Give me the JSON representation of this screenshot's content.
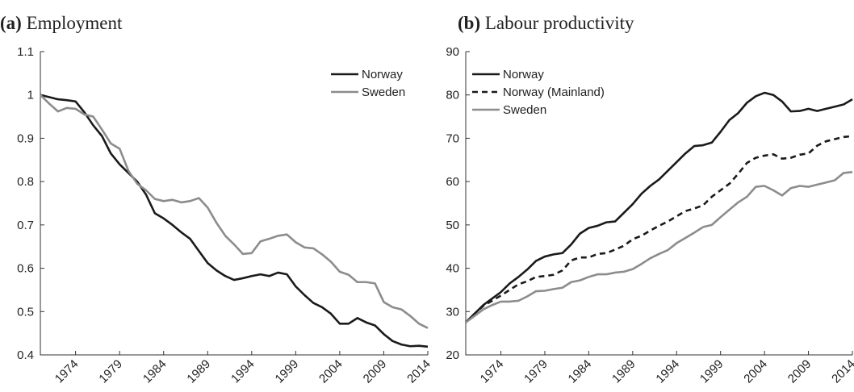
{
  "chart_data": [
    {
      "type": "line",
      "title_letter": "(a)",
      "title": "Employment",
      "x": [
        1970,
        1971,
        1972,
        1973,
        1974,
        1975,
        1976,
        1977,
        1978,
        1979,
        1980,
        1981,
        1982,
        1983,
        1984,
        1985,
        1986,
        1987,
        1988,
        1989,
        1990,
        1991,
        1992,
        1993,
        1994,
        1995,
        1996,
        1997,
        1998,
        1999,
        2000,
        2001,
        2002,
        2003,
        2004,
        2005,
        2006,
        2007,
        2008,
        2009,
        2010,
        2011,
        2012,
        2013,
        2014
      ],
      "series": [
        {
          "name": "Norway",
          "color": "#1a1a1a",
          "dash": false,
          "values": [
            1.0,
            0.995,
            0.99,
            0.988,
            0.985,
            0.96,
            0.93,
            0.905,
            0.865,
            0.84,
            0.82,
            0.8,
            0.77,
            0.727,
            0.715,
            0.7,
            0.683,
            0.668,
            0.64,
            0.612,
            0.595,
            0.582,
            0.573,
            0.577,
            0.582,
            0.586,
            0.582,
            0.59,
            0.586,
            0.558,
            0.538,
            0.52,
            0.51,
            0.495,
            0.472,
            0.472,
            0.485,
            0.475,
            0.468,
            0.448,
            0.432,
            0.424,
            0.42,
            0.421,
            0.419
          ]
        },
        {
          "name": "Sweden",
          "color": "#8c8c8c",
          "dash": false,
          "values": [
            1.0,
            0.98,
            0.962,
            0.97,
            0.968,
            0.955,
            0.95,
            0.92,
            0.888,
            0.876,
            0.825,
            0.795,
            0.78,
            0.76,
            0.755,
            0.758,
            0.752,
            0.755,
            0.762,
            0.74,
            0.705,
            0.675,
            0.655,
            0.633,
            0.635,
            0.662,
            0.668,
            0.675,
            0.678,
            0.66,
            0.648,
            0.646,
            0.632,
            0.615,
            0.592,
            0.585,
            0.568,
            0.568,
            0.565,
            0.522,
            0.51,
            0.505,
            0.49,
            0.472,
            0.462
          ]
        }
      ],
      "xlim": [
        1970,
        2014
      ],
      "xticks": [
        1974,
        1979,
        1984,
        1989,
        1994,
        1999,
        2004,
        2009,
        2014
      ],
      "ylim": [
        0.4,
        1.1
      ],
      "yticks": [
        {
          "value": 0.4,
          "label": "0.4"
        },
        {
          "value": 0.5,
          "label": "0.5"
        },
        {
          "value": 0.6,
          "label": "0.6"
        },
        {
          "value": 0.7,
          "label": "0.7"
        },
        {
          "value": 0.8,
          "label": "0.8"
        },
        {
          "value": 0.9,
          "label": "0.9"
        },
        1,
        {
          "value": 1.1,
          "label": "1.1"
        }
      ],
      "legend": "upper right",
      "grid": false
    },
    {
      "type": "line",
      "title_letter": "(b)",
      "title": "Labour productivity",
      "x": [
        1970,
        1971,
        1972,
        1973,
        1974,
        1975,
        1976,
        1977,
        1978,
        1979,
        1980,
        1981,
        1982,
        1983,
        1984,
        1985,
        1986,
        1987,
        1988,
        1989,
        1990,
        1991,
        1992,
        1993,
        1994,
        1995,
        1996,
        1997,
        1998,
        1999,
        2000,
        2001,
        2002,
        2003,
        2004,
        2005,
        2006,
        2007,
        2008,
        2009,
        2010,
        2011,
        2012,
        2013,
        2014
      ],
      "series": [
        {
          "name": "Norway",
          "color": "#1a1a1a",
          "dash": false,
          "values": [
            27.5,
            29.5,
            31.5,
            33,
            34.5,
            36.5,
            38,
            39.7,
            41.7,
            42.7,
            43.2,
            43.5,
            45.5,
            48,
            49.3,
            49.8,
            50.6,
            50.8,
            52.8,
            54.8,
            57.2,
            59,
            60.5,
            62.5,
            64.5,
            66.5,
            68.2,
            68.4,
            69,
            71.5,
            74.2,
            75.8,
            78.2,
            79.7,
            80.5,
            80,
            78.5,
            76.2,
            76.3,
            76.8,
            76.3,
            76.8,
            77.3,
            77.8,
            79
          ]
        },
        {
          "name": "Norway (Mainland)",
          "color": "#1a1a1a",
          "dash": true,
          "values": [
            27.5,
            29.5,
            31.3,
            32.5,
            33.7,
            35,
            36.3,
            37,
            38,
            38.2,
            38.5,
            39.5,
            41.8,
            42.5,
            42.5,
            43.3,
            43.5,
            44.3,
            45.2,
            46.7,
            47.5,
            48.7,
            49.8,
            50.8,
            52,
            53.2,
            53.8,
            54.5,
            56.5,
            58,
            59.5,
            61.8,
            64.3,
            65.5,
            66,
            66.3,
            65.3,
            65.5,
            66.2,
            66.5,
            68.3,
            69.3,
            69.8,
            70.3,
            70.5
          ]
        },
        {
          "name": "Sweden",
          "color": "#8c8c8c",
          "dash": false,
          "values": [
            27.5,
            29,
            30.5,
            31.5,
            32.3,
            32.3,
            32.5,
            33.5,
            34.7,
            34.8,
            35.2,
            35.5,
            36.8,
            37.2,
            38,
            38.6,
            38.6,
            39,
            39.2,
            39.8,
            41,
            42.3,
            43.3,
            44.2,
            45.8,
            47,
            48.2,
            49.5,
            50,
            51.8,
            53.5,
            55.2,
            56.5,
            58.8,
            59,
            58,
            56.8,
            58.5,
            59,
            58.8,
            59.3,
            59.8,
            60.3,
            62,
            62.2
          ]
        }
      ],
      "xlim": [
        1970,
        2014
      ],
      "xticks": [
        1974,
        1979,
        1984,
        1989,
        1994,
        1999,
        2004,
        2009,
        2014
      ],
      "ylim": [
        20,
        90
      ],
      "yticks": [
        20,
        30,
        40,
        50,
        60,
        70,
        80,
        90
      ],
      "legend": "upper left",
      "grid": false
    }
  ]
}
